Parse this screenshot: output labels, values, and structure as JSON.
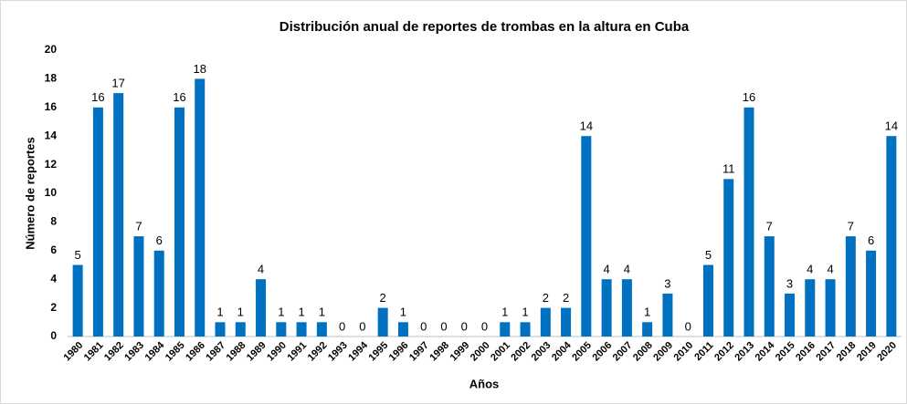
{
  "chart_data": {
    "type": "bar",
    "title": "Distribución anual de reportes de trombas en la altura en Cuba",
    "x_label": "Años",
    "y_label": "Número de reportes",
    "categories": [
      "1980",
      "1981",
      "1982",
      "1983",
      "1984",
      "1985",
      "1986",
      "1987",
      "1988",
      "1989",
      "1990",
      "1991",
      "1992",
      "1993",
      "1994",
      "1995",
      "1996",
      "1997",
      "1998",
      "1999",
      "2000",
      "2001",
      "2002",
      "2003",
      "2004",
      "2005",
      "2006",
      "2007",
      "2008",
      "2009",
      "2010",
      "2011",
      "2012",
      "2013",
      "2014",
      "2015",
      "2016",
      "2017",
      "2018",
      "2019",
      "2020"
    ],
    "values": [
      5,
      16,
      17,
      7,
      6,
      16,
      18,
      1,
      1,
      4,
      1,
      1,
      1,
      0,
      0,
      2,
      1,
      0,
      0,
      0,
      0,
      1,
      1,
      2,
      2,
      14,
      4,
      4,
      1,
      3,
      0,
      5,
      11,
      16,
      7,
      3,
      4,
      4,
      7,
      6,
      14
    ],
    "color": "#0070c0",
    "ylim": [
      0,
      20
    ],
    "yticks": [
      0,
      2,
      4,
      6,
      8,
      10,
      12,
      14,
      16,
      18,
      20
    ],
    "grid": false
  }
}
